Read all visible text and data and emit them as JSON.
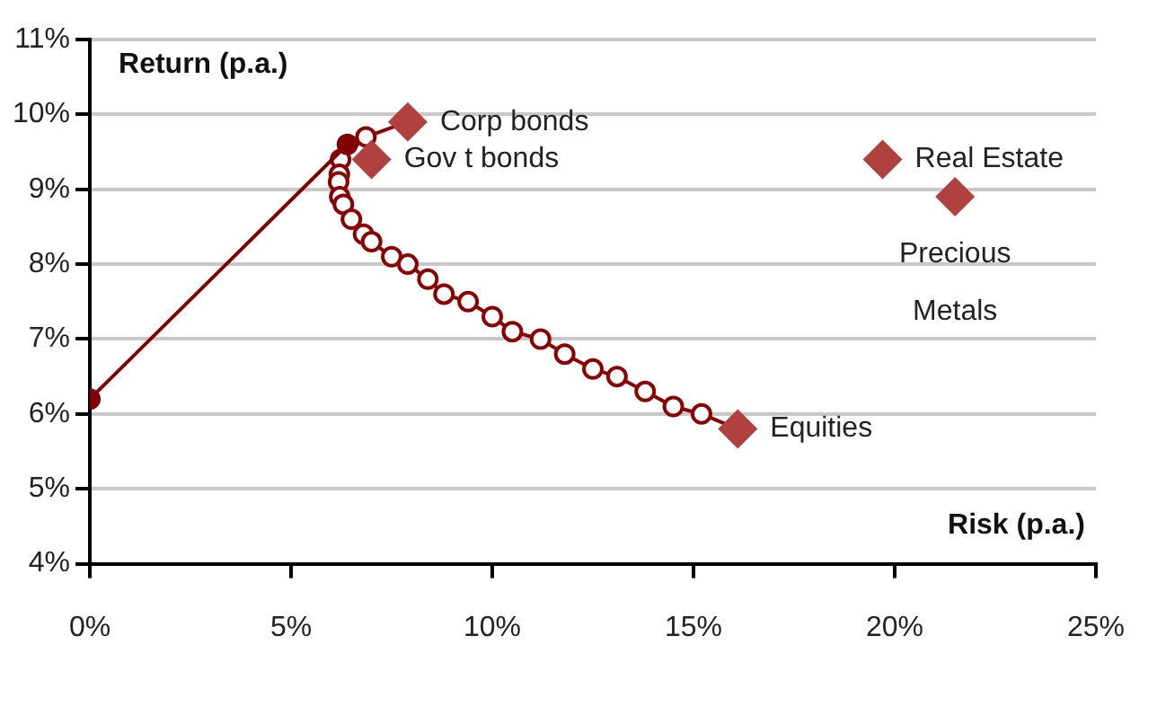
{
  "chart_data": {
    "type": "scatter",
    "xlabel": "Risk (p.a.)",
    "ylabel": "Return (p.a.)",
    "xlim": [
      0,
      25
    ],
    "xticks": [
      {
        "value": 0,
        "label": "0%"
      },
      {
        "value": 5,
        "label": "5%"
      },
      {
        "value": 10,
        "label": "10%"
      },
      {
        "value": 15,
        "label": "15%"
      },
      {
        "value": 20,
        "label": "20%"
      },
      {
        "value": 25,
        "label": "25%"
      }
    ],
    "ylim": [
      4,
      11
    ],
    "yticks": [
      {
        "value": 4,
        "label": "4%"
      },
      {
        "value": 5,
        "label": "5%"
      },
      {
        "value": 6,
        "label": "6%"
      },
      {
        "value": 7,
        "label": "7%"
      },
      {
        "value": 8,
        "label": "8%"
      },
      {
        "value": 9,
        "label": "9%"
      },
      {
        "value": 10,
        "label": "10%"
      },
      {
        "value": 11,
        "label": "11%"
      }
    ],
    "grid": "y",
    "legend": false,
    "series": [
      {
        "type": "line",
        "color": "#8b0000",
        "marker": "circle",
        "x": [
          7.9,
          6.86,
          6.23,
          6.2,
          6.18,
          6.21,
          6.3,
          6.5,
          6.8,
          7.0,
          7.5,
          7.9,
          8.4,
          8.8,
          9.4,
          10.0,
          10.5,
          11.2,
          11.8,
          12.5,
          13.1,
          13.8,
          14.5,
          15.2,
          16.1
        ],
        "values": [
          9.9,
          9.7,
          9.4,
          9.2,
          9.1,
          8.9,
          8.8,
          8.6,
          8.4,
          8.3,
          8.1,
          8.0,
          7.8,
          7.6,
          7.5,
          7.3,
          7.1,
          7.0,
          6.8,
          6.6,
          6.5,
          6.3,
          6.1,
          6.0,
          5.8
        ]
      },
      {
        "type": "line",
        "color": "#800000",
        "marker": "circle",
        "x": [
          0,
          6.4
        ],
        "values": [
          6.2,
          9.6
        ]
      },
      {
        "color": "#b0413e",
        "marker": "diamond",
        "x": [
          7.9,
          7.0,
          19.7,
          21.5,
          16.1
        ],
        "values": [
          9.9,
          9.4,
          9.4,
          8.9,
          5.8
        ]
      }
    ],
    "annotations": [
      {
        "text": "Corp bonds",
        "x": 7.9,
        "y": 9.9
      },
      {
        "text": "Gov t bonds",
        "x": 7.0,
        "y": 9.4
      },
      {
        "text": "Real Estate",
        "x": 19.7,
        "y": 9.4
      },
      {
        "text": "Precious Metals",
        "x": 21.5,
        "y": 8.9
      },
      {
        "text": "Equities",
        "x": 16.1,
        "y": 5.8
      }
    ]
  }
}
